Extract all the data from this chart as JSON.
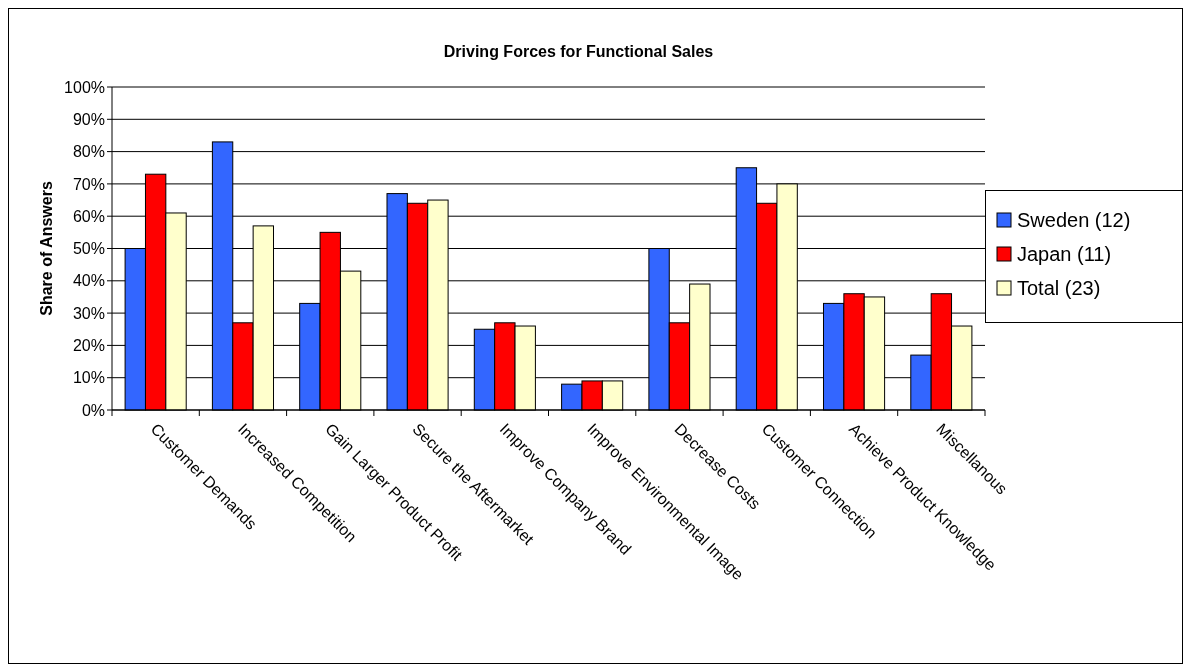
{
  "chart_data": {
    "type": "bar",
    "title": "Driving Forces for Functional Sales",
    "ylabel": "Share of Answers",
    "categories": [
      "Customer Demands",
      "Increased Competition",
      "Gain Larger Product Profit",
      "Secure the Aftermarket",
      "Improve Company Brand",
      "Improve Environmental Image",
      "Decrease Costs",
      "Customer Connection",
      "Achieve Product Knowledge",
      "Miscellanous"
    ],
    "series": [
      {
        "name": "Sweden (12)",
        "color": "#3366ff",
        "values": [
          50,
          83,
          33,
          67,
          25,
          8,
          50,
          75,
          33,
          17
        ]
      },
      {
        "name": "Japan (11)",
        "color": "#ff0000",
        "values": [
          73,
          27,
          55,
          64,
          27,
          9,
          27,
          64,
          36,
          36
        ]
      },
      {
        "name": "Total (23)",
        "color": "#ffffcc",
        "values": [
          61,
          57,
          43,
          65,
          26,
          9,
          39,
          70,
          35,
          26
        ]
      }
    ],
    "ylim": [
      0,
      100
    ],
    "yticks": [
      {
        "value": 0,
        "label": "0%"
      },
      {
        "value": 10,
        "label": "10%"
      },
      {
        "value": 20,
        "label": "20%"
      },
      {
        "value": 30,
        "label": "30%"
      },
      {
        "value": 40,
        "label": "40%"
      },
      {
        "value": 50,
        "label": "50%"
      },
      {
        "value": 60,
        "label": "60%"
      },
      {
        "value": 70,
        "label": "70%"
      },
      {
        "value": 80,
        "label": "80%"
      },
      {
        "value": 90,
        "label": "90%"
      },
      {
        "value": 100,
        "label": "100%"
      }
    ],
    "grid": "y",
    "legend": "right"
  }
}
